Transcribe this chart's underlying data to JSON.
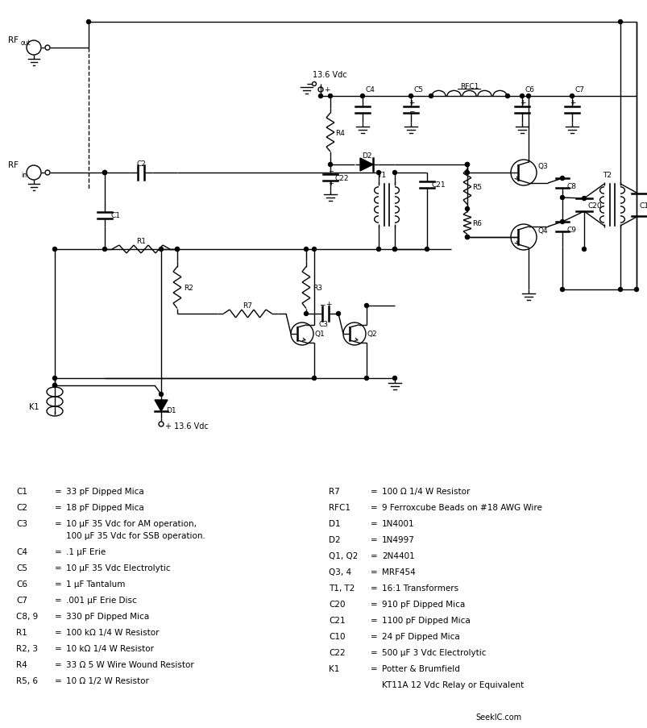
{
  "bg_color": "#ffffff",
  "line_color": "#000000",
  "fig_width": 8.04,
  "fig_height": 9.04,
  "dpi": 100,
  "component_list_left": [
    [
      "C1",
      "=  33 pF Dipped Mica"
    ],
    [
      "C2",
      "=  18 pF Dipped Mica"
    ],
    [
      "C3",
      "=  10 μF 35 Vdc for AM operation,"
    ],
    [
      "",
      "     100 μF 35 Vdc for SSB operation."
    ],
    [
      "C4",
      "=  .1 μF Erie"
    ],
    [
      "C5",
      "=  10 μF 35 Vdc Electrolytic"
    ],
    [
      "C6",
      "=  1 μF Tantalum"
    ],
    [
      "C7",
      "=  .001 μF Erie Disc"
    ],
    [
      "C8, 9",
      "=  330 pF Dipped Mica"
    ],
    [
      "R1",
      "=  100 kΩ 1/4 W Resistor"
    ],
    [
      "R2, 3",
      "=  10 kΩ 1/4 W Resistor"
    ],
    [
      "R4",
      "=  33 Ω 5 W Wire Wound Resistor"
    ],
    [
      "R5, 6",
      "=  10 Ω 1/2 W Resistor"
    ]
  ],
  "component_list_right": [
    [
      "R7",
      "=  100 Ω 1/4 W Resistor"
    ],
    [
      "RFC1",
      "=  9 Ferroxcube Beads on #18 AWG Wire"
    ],
    [
      "D1",
      "=  1N4001"
    ],
    [
      "D2",
      "=  1N4997"
    ],
    [
      "Q1, Q2",
      "=  2N4401"
    ],
    [
      "Q3, 4",
      "=  MRF454"
    ],
    [
      "T1, T2",
      "=  16:1 Transformers"
    ],
    [
      "C20",
      "=  910 pF Dipped Mica"
    ],
    [
      "C21",
      "=  1100 pF Dipped Mica"
    ],
    [
      "C10",
      "=  24 pF Dipped Mica"
    ],
    [
      "C22",
      "=  500 μF 3 Vdc Electrolytic"
    ],
    [
      "K1",
      "=  Potter & Brumfield"
    ],
    [
      "",
      "     KT11A 12 Vdc Relay or Equivalent"
    ]
  ],
  "watermark": "SeekIC.com"
}
